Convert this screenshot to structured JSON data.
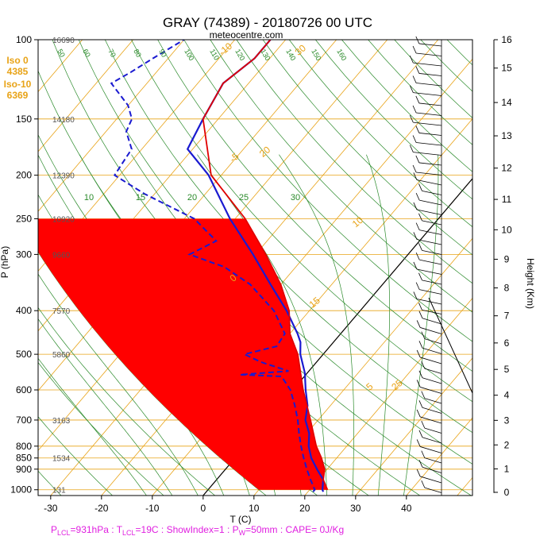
{
  "title": "GRAY (74389) - 20180726 00 UTC",
  "subtitle": "meteocentre.com",
  "freezing_levels": [
    {
      "label": "Iso 0",
      "value": "4385"
    },
    {
      "label": "Iso-10",
      "value": "6369"
    }
  ],
  "footer": {
    "plcl": "P",
    "plcl_sub": "LCL",
    "plcl_val": "=931hPa : T",
    "tlcl_sub": "LCL",
    "rest": "=19C : ShowIndex=1 : P",
    "pw_sub": "W",
    "pw_rest": "=50mm : CAPE= 0J/Kg"
  },
  "colors": {
    "isotherm": "#e8a317",
    "dry_adiabat": "#2a8a2a",
    "moist_adiabat": "#2a8a2a",
    "temperature": "#1a1ad0",
    "dewpoint": "#1a1ad0",
    "parcel": "#e00000",
    "cape_fill": "#ff0000",
    "footer": "#e020e0"
  },
  "chart_data": {
    "type": "line",
    "chart_kind": "Skew-T log-P sounding",
    "xlabel": "T (C)",
    "ylabel": "P (hPa)",
    "y2label": "Height (Km)",
    "xlim": [
      -35,
      47
    ],
    "ylim": [
      1030,
      100
    ],
    "y_scale": "log",
    "x_ticks": [
      -30,
      -20,
      -10,
      0,
      10,
      20,
      30,
      40
    ],
    "pressure_levels": [
      100,
      150,
      200,
      250,
      300,
      400,
      500,
      600,
      700,
      800,
      850,
      900,
      1000
    ],
    "standard_heights": [
      {
        "p": 100,
        "h": "16690"
      },
      {
        "p": 150,
        "h": "14180"
      },
      {
        "p": 200,
        "h": "12390"
      },
      {
        "p": 250,
        "h": "10920"
      },
      {
        "p": 300,
        "h": "9660"
      },
      {
        "p": 400,
        "h": "7570"
      },
      {
        "p": 500,
        "h": "5860"
      },
      {
        "p": 700,
        "h": "3163"
      },
      {
        "p": 850,
        "h": "1534"
      },
      {
        "p": 1000,
        "h": "131"
      }
    ],
    "height_ticks_km": [
      0,
      1,
      2,
      3,
      4,
      5,
      6,
      7,
      8,
      9,
      10,
      11,
      12,
      13,
      14,
      15,
      16
    ],
    "isotherm_labels": [
      -10,
      -5,
      0,
      5,
      10,
      15,
      20,
      25,
      30
    ],
    "isotherm_ticks_extra": [
      40
    ],
    "dry_adiabat_labels": [
      50,
      60,
      70,
      80,
      90,
      100,
      110,
      120,
      130,
      140,
      150,
      160
    ],
    "moist_adiabat_labels": [
      10,
      15,
      20,
      25,
      30
    ],
    "series": [
      {
        "name": "temperature",
        "points": [
          [
            1010,
            23
          ],
          [
            1000,
            22.5
          ],
          [
            950,
            21.0
          ],
          [
            900,
            18.0
          ],
          [
            850,
            15.0
          ],
          [
            800,
            12.5
          ],
          [
            750,
            10.5
          ],
          [
            700,
            7.5
          ],
          [
            650,
            5.5
          ],
          [
            600,
            2.5
          ],
          [
            550,
            -0.5
          ],
          [
            500,
            -4.5
          ],
          [
            470,
            -6.5
          ],
          [
            450,
            -8.5
          ],
          [
            400,
            -14.5
          ],
          [
            350,
            -22.0
          ],
          [
            300,
            -30.5
          ],
          [
            250,
            -41.0
          ],
          [
            200,
            -52.5
          ],
          [
            175,
            -61.0
          ],
          [
            150,
            -63.0
          ],
          [
            125,
            -65.0
          ],
          [
            110,
            -63.0
          ],
          [
            100,
            -63.0
          ]
        ]
      },
      {
        "name": "dewpoint",
        "points": [
          [
            1010,
            21
          ],
          [
            1000,
            21
          ],
          [
            950,
            18.5
          ],
          [
            900,
            16.0
          ],
          [
            850,
            13.5
          ],
          [
            800,
            11.0
          ],
          [
            750,
            8.5
          ],
          [
            700,
            6.0
          ],
          [
            650,
            3.0
          ],
          [
            600,
            -0.5
          ],
          [
            560,
            -4.5
          ],
          [
            555,
            -13.0
          ],
          [
            545,
            -4.0
          ],
          [
            520,
            -11.0
          ],
          [
            500,
            -15.5
          ],
          [
            480,
            -10.5
          ],
          [
            450,
            -11.0
          ],
          [
            400,
            -17.0
          ],
          [
            350,
            -26.0
          ],
          [
            320,
            -34.0
          ],
          [
            300,
            -43.0
          ],
          [
            280,
            -40.0
          ],
          [
            250,
            -48.0
          ],
          [
            220,
            -62.0
          ],
          [
            200,
            -71.0
          ],
          [
            175,
            -72.0
          ],
          [
            160,
            -76.0
          ],
          [
            150,
            -77.0
          ],
          [
            140,
            -80.0
          ],
          [
            125,
            -87.0
          ],
          [
            118,
            -85.0
          ],
          [
            110,
            -83.0
          ],
          [
            100,
            -80.0
          ]
        ]
      },
      {
        "name": "parcel",
        "points": [
          [
            1000,
            23.5
          ],
          [
            950,
            21.0
          ],
          [
            900,
            19.5
          ],
          [
            850,
            17.0
          ],
          [
            800,
            14.0
          ],
          [
            700,
            8.5
          ],
          [
            600,
            2.0
          ],
          [
            500,
            -5.0
          ],
          [
            450,
            -10.0
          ],
          [
            400,
            -14.0
          ],
          [
            350,
            -20.0
          ],
          [
            300,
            -28.0
          ],
          [
            250,
            -38.0
          ],
          [
            200,
            -52.0
          ],
          [
            150,
            -63.0
          ],
          [
            125,
            -65.0
          ],
          [
            110,
            -63.0
          ],
          [
            100,
            -63.0
          ]
        ]
      }
    ],
    "cape_region": {
      "p_top": 250,
      "p_bottom": 1000,
      "bounded_by": [
        "parcel",
        "dry_adiabat_10"
      ]
    },
    "winds_barbs": "right-side profile"
  }
}
